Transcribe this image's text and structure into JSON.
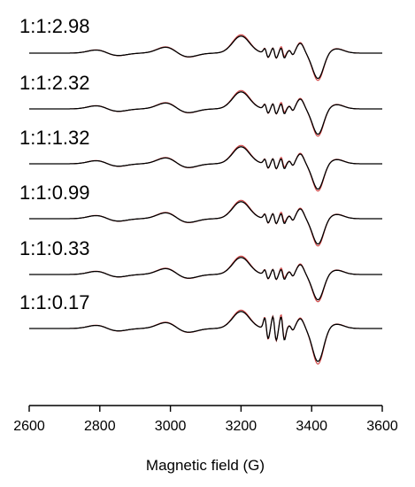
{
  "chart_data": {
    "type": "line",
    "title": "",
    "xlabel": "Magnetic field (G)",
    "ylabel": "",
    "xlim": [
      2600,
      3600
    ],
    "xticks": [
      2600,
      2800,
      3000,
      3200,
      3400,
      3600
    ],
    "grid": false,
    "legend": "none",
    "curve_colors": {
      "experimental": "#000000",
      "simulated": "#d04040"
    },
    "series": [
      {
        "name": "1:1:2.98",
        "strong_features": false
      },
      {
        "name": "1:1:2.32",
        "strong_features": false
      },
      {
        "name": "1:1:1.32",
        "strong_features": false
      },
      {
        "name": "1:1:0.99",
        "strong_features": false
      },
      {
        "name": "1:1:0.33",
        "strong_features": false
      },
      {
        "name": "1:1:0.17",
        "strong_features": true
      }
    ]
  }
}
